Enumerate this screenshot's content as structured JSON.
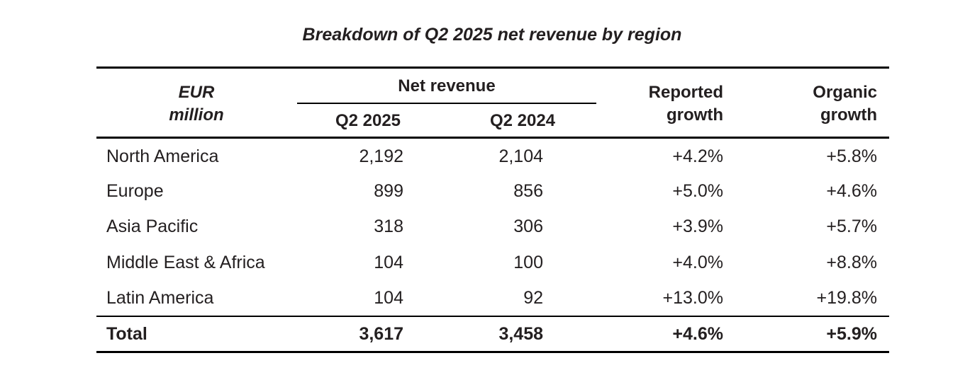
{
  "title": "Breakdown of Q2 2025 net revenue by region",
  "header": {
    "unit_line1": "EUR",
    "unit_line2": "million",
    "group_label": "Net revenue",
    "col_q2_2025": "Q2 2025",
    "col_q2_2024": "Q2 2024",
    "reported_line1": "Reported",
    "reported_line2": "growth",
    "organic_line1": "Organic",
    "organic_line2": "growth"
  },
  "rows": [
    {
      "region": "North America",
      "q2_2025": "2,192",
      "q2_2024": "2,104",
      "reported_growth": "+4.2%",
      "organic_growth": "+5.8%"
    },
    {
      "region": "Europe",
      "q2_2025": "899",
      "q2_2024": "856",
      "reported_growth": "+5.0%",
      "organic_growth": "+4.6%"
    },
    {
      "region": "Asia Pacific",
      "q2_2025": "318",
      "q2_2024": "306",
      "reported_growth": "+3.9%",
      "organic_growth": "+5.7%"
    },
    {
      "region": "Middle East & Africa",
      "q2_2025": "104",
      "q2_2024": "100",
      "reported_growth": "+4.0%",
      "organic_growth": "+8.8%"
    },
    {
      "region": "Latin America",
      "q2_2025": "104",
      "q2_2024": "92",
      "reported_growth": "+13.0%",
      "organic_growth": "+19.8%"
    }
  ],
  "total": {
    "region": "Total",
    "q2_2025": "3,617",
    "q2_2024": "3,458",
    "reported_growth": "+4.6%",
    "organic_growth": "+5.9%"
  }
}
